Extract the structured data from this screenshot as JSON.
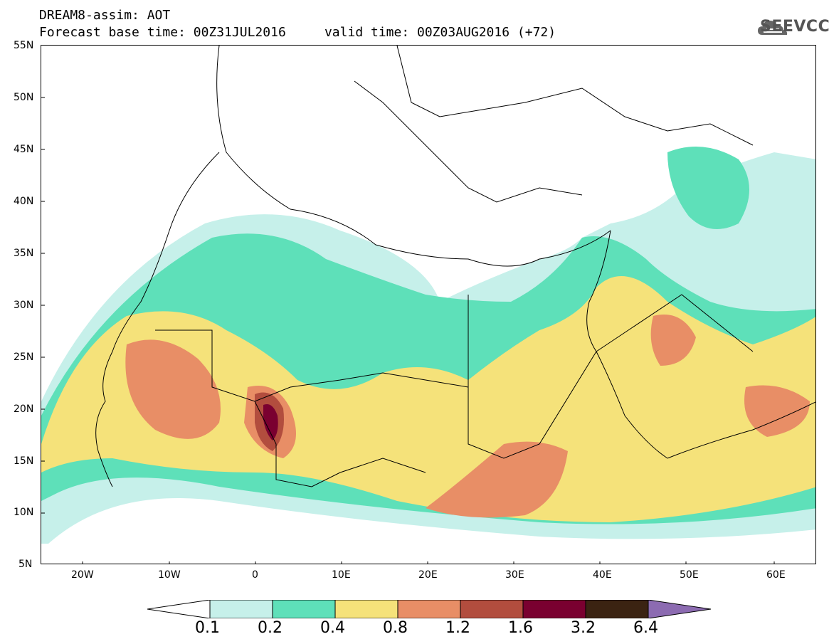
{
  "title": {
    "line1": "DREAM8-assim: AOT",
    "line2": "Forecast base time: 00Z31JUL2016     valid time: 00Z03AUG2016 (+72)"
  },
  "logo": {
    "text": "SEEVCCC",
    "icon": "cloud-icon"
  },
  "axes": {
    "lat_labels": [
      "55N",
      "50N",
      "45N",
      "40N",
      "35N",
      "30N",
      "25N",
      "20N",
      "15N",
      "10N",
      "5N"
    ],
    "lon_labels": [
      "20W",
      "10W",
      "0",
      "10E",
      "20E",
      "30E",
      "40E",
      "50E",
      "60E"
    ],
    "lat_range": [
      5,
      55
    ],
    "lon_range": [
      -25,
      65
    ]
  },
  "colorbar": {
    "labels": [
      "0.1",
      "0.2",
      "0.4",
      "0.8",
      "1.2",
      "1.6",
      "3.2",
      "6.4"
    ],
    "colors": [
      "#ffffff",
      "#c6f0ea",
      "#5ee0b9",
      "#f5e27a",
      "#e88e66",
      "#b24d3e",
      "#7a0030",
      "#3b2312",
      "#8c6bb1"
    ]
  }
}
